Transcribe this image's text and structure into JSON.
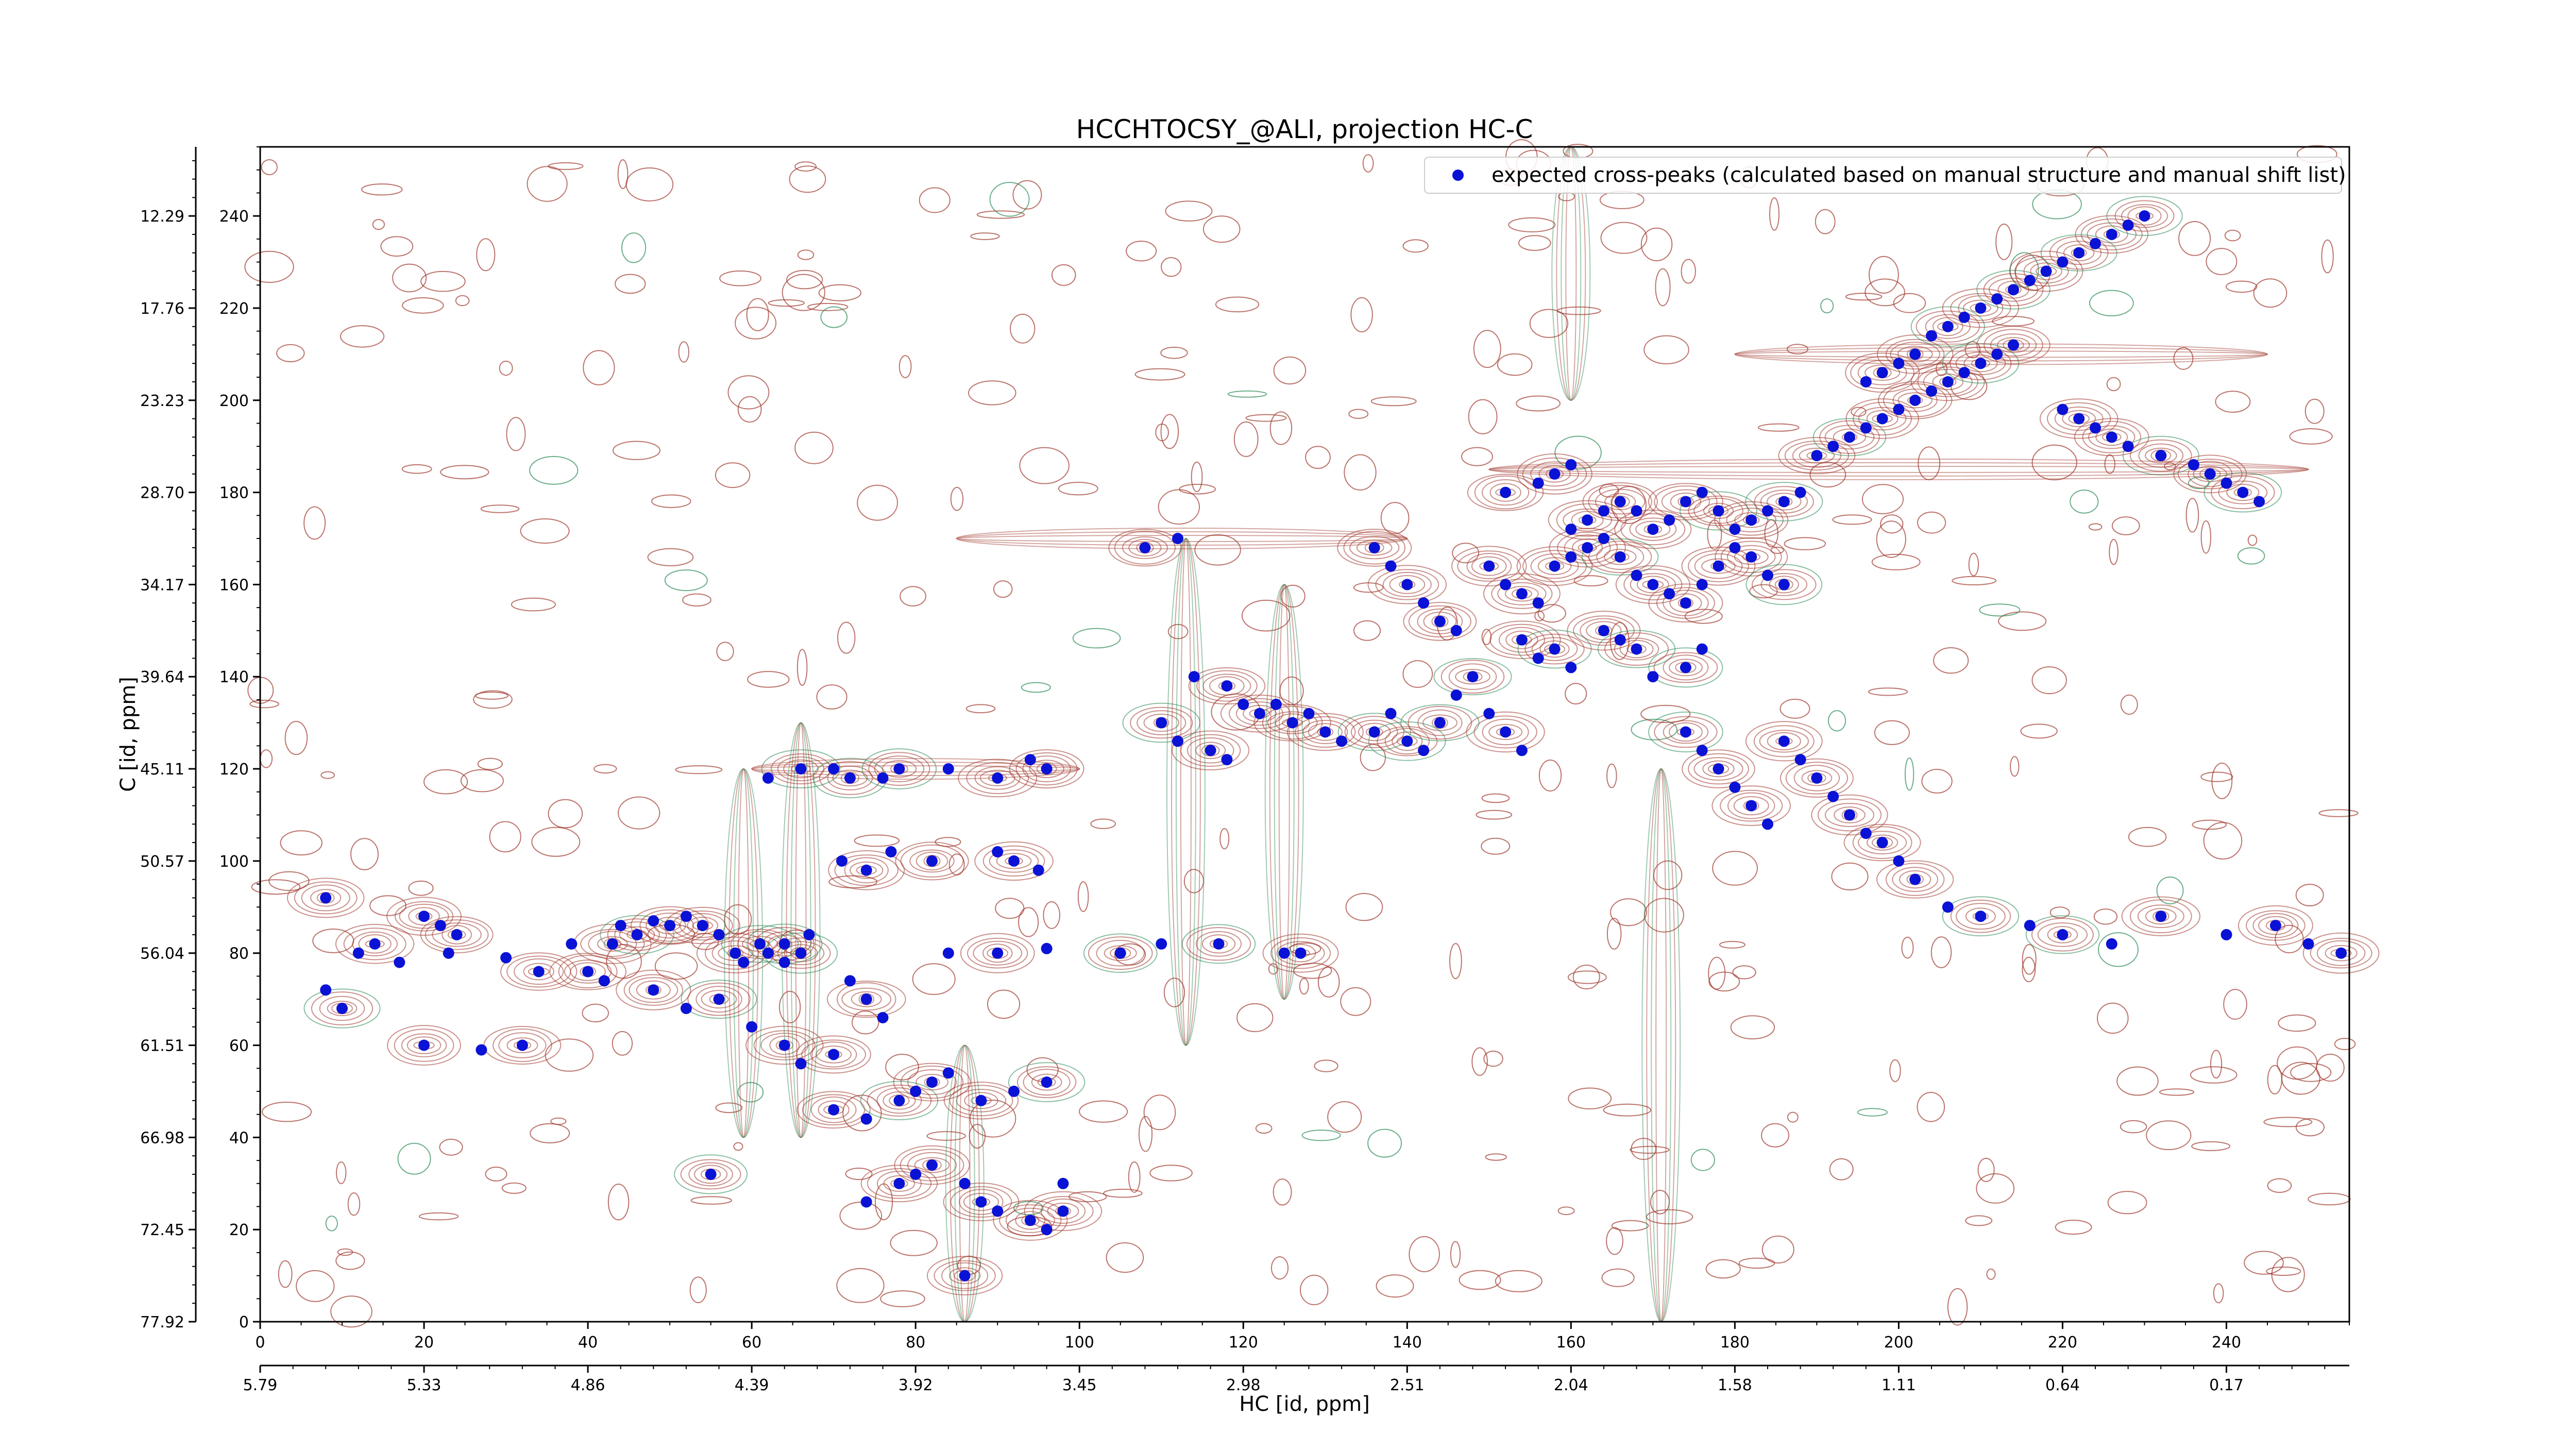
{
  "chart_data": {
    "type": "scatter",
    "title": "HCCHTOCSY_@ALI, projection HC-C",
    "xlabel": "HC [id, ppm]",
    "ylabel": "C [id, ppm]",
    "xlim": [
      0,
      255
    ],
    "ylim": [
      0,
      255
    ],
    "x_ticks": [
      0,
      20,
      40,
      60,
      80,
      100,
      120,
      140,
      160,
      180,
      200,
      220,
      240
    ],
    "y_ticks": [
      0,
      20,
      40,
      60,
      80,
      100,
      120,
      140,
      160,
      180,
      200,
      220,
      240
    ],
    "hc_ppm_ticks": [
      "5.79",
      "5.33",
      "4.86",
      "4.39",
      "3.92",
      "3.45",
      "2.98",
      "2.51",
      "2.04",
      "1.58",
      "1.11",
      "0.64",
      "0.17"
    ],
    "c_ppm_ticks": [
      "77.92",
      "72.45",
      "66.98",
      "61.51",
      "56.04",
      "50.57",
      "45.11",
      "39.64",
      "34.17",
      "28.70",
      "23.23",
      "17.76",
      "12.29"
    ],
    "legend": {
      "placement": "top-right",
      "entries": [
        "expected cross-peaks (calculated based on manual structure and manual shift list)"
      ]
    },
    "grid": false,
    "colors": {
      "points": "#0a12d6",
      "positive_contour": "#a0392e",
      "negative_contour": "#2e8b57"
    },
    "series": [
      {
        "name": "expected cross-peaks (calculated based on manual structure and manual shift list)",
        "points": [
          [
            8,
            92
          ],
          [
            12,
            80
          ],
          [
            14,
            82
          ],
          [
            17,
            78
          ],
          [
            10,
            68
          ],
          [
            8,
            72
          ],
          [
            20,
            88
          ],
          [
            22,
            86
          ],
          [
            24,
            84
          ],
          [
            23,
            80
          ],
          [
            20,
            60
          ],
          [
            27,
            59
          ],
          [
            32,
            60
          ],
          [
            30,
            79
          ],
          [
            34,
            76
          ],
          [
            38,
            82
          ],
          [
            40,
            76
          ],
          [
            42,
            74
          ],
          [
            43,
            82
          ],
          [
            44,
            86
          ],
          [
            46,
            84
          ],
          [
            48,
            87
          ],
          [
            50,
            86
          ],
          [
            52,
            88
          ],
          [
            54,
            86
          ],
          [
            56,
            84
          ],
          [
            58,
            80
          ],
          [
            59,
            78
          ],
          [
            61,
            82
          ],
          [
            62,
            80
          ],
          [
            64,
            82
          ],
          [
            64,
            78
          ],
          [
            66,
            80
          ],
          [
            67,
            84
          ],
          [
            48,
            72
          ],
          [
            52,
            68
          ],
          [
            56,
            70
          ],
          [
            60,
            64
          ],
          [
            64,
            60
          ],
          [
            66,
            56
          ],
          [
            70,
            58
          ],
          [
            72,
            74
          ],
          [
            74,
            70
          ],
          [
            76,
            66
          ],
          [
            70,
            46
          ],
          [
            74,
            44
          ],
          [
            78,
            48
          ],
          [
            80,
            50
          ],
          [
            82,
            52
          ],
          [
            84,
            54
          ],
          [
            88,
            48
          ],
          [
            92,
            50
          ],
          [
            96,
            52
          ],
          [
            62,
            118
          ],
          [
            66,
            120
          ],
          [
            70,
            120
          ],
          [
            72,
            118
          ],
          [
            76,
            118
          ],
          [
            78,
            120
          ],
          [
            84,
            120
          ],
          [
            90,
            118
          ],
          [
            94,
            122
          ],
          [
            96,
            120
          ],
          [
            71,
            100
          ],
          [
            74,
            98
          ],
          [
            77,
            102
          ],
          [
            82,
            100
          ],
          [
            90,
            102
          ],
          [
            92,
            100
          ],
          [
            95,
            98
          ],
          [
            55,
            32
          ],
          [
            74,
            26
          ],
          [
            78,
            30
          ],
          [
            80,
            32
          ],
          [
            82,
            34
          ],
          [
            86,
            30
          ],
          [
            88,
            26
          ],
          [
            90,
            24
          ],
          [
            94,
            22
          ],
          [
            96,
            20
          ],
          [
            98,
            24
          ],
          [
            98,
            30
          ],
          [
            86,
            10
          ],
          [
            84,
            80
          ],
          [
            90,
            80
          ],
          [
            96,
            81
          ],
          [
            105,
            80
          ],
          [
            110,
            82
          ],
          [
            117,
            82
          ],
          [
            125,
            80
          ],
          [
            127,
            80
          ],
          [
            114,
            140
          ],
          [
            118,
            138
          ],
          [
            120,
            134
          ],
          [
            122,
            132
          ],
          [
            124,
            134
          ],
          [
            110,
            130
          ],
          [
            112,
            126
          ],
          [
            116,
            124
          ],
          [
            118,
            122
          ],
          [
            126,
            130
          ],
          [
            128,
            132
          ],
          [
            130,
            128
          ],
          [
            132,
            126
          ],
          [
            136,
            128
          ],
          [
            138,
            132
          ],
          [
            140,
            126
          ],
          [
            142,
            124
          ],
          [
            144,
            130
          ],
          [
            146,
            136
          ],
          [
            148,
            140
          ],
          [
            150,
            132
          ],
          [
            152,
            128
          ],
          [
            154,
            124
          ],
          [
            108,
            168
          ],
          [
            112,
            170
          ],
          [
            136,
            168
          ],
          [
            138,
            164
          ],
          [
            140,
            160
          ],
          [
            142,
            156
          ],
          [
            144,
            152
          ],
          [
            146,
            150
          ],
          [
            150,
            164
          ],
          [
            152,
            160
          ],
          [
            154,
            158
          ],
          [
            156,
            156
          ],
          [
            158,
            164
          ],
          [
            160,
            166
          ],
          [
            162,
            168
          ],
          [
            164,
            170
          ],
          [
            166,
            166
          ],
          [
            168,
            162
          ],
          [
            170,
            160
          ],
          [
            172,
            158
          ],
          [
            174,
            156
          ],
          [
            176,
            160
          ],
          [
            178,
            164
          ],
          [
            180,
            168
          ],
          [
            182,
            166
          ],
          [
            184,
            162
          ],
          [
            186,
            160
          ],
          [
            160,
            172
          ],
          [
            162,
            174
          ],
          [
            164,
            176
          ],
          [
            166,
            178
          ],
          [
            168,
            176
          ],
          [
            170,
            172
          ],
          [
            172,
            174
          ],
          [
            174,
            178
          ],
          [
            176,
            180
          ],
          [
            178,
            176
          ],
          [
            180,
            172
          ],
          [
            182,
            174
          ],
          [
            184,
            176
          ],
          [
            186,
            178
          ],
          [
            188,
            180
          ],
          [
            152,
            180
          ],
          [
            156,
            182
          ],
          [
            158,
            184
          ],
          [
            160,
            186
          ],
          [
            154,
            148
          ],
          [
            156,
            144
          ],
          [
            158,
            146
          ],
          [
            160,
            142
          ],
          [
            164,
            150
          ],
          [
            166,
            148
          ],
          [
            168,
            146
          ],
          [
            170,
            140
          ],
          [
            174,
            142
          ],
          [
            176,
            146
          ],
          [
            190,
            188
          ],
          [
            192,
            190
          ],
          [
            194,
            192
          ],
          [
            196,
            194
          ],
          [
            198,
            196
          ],
          [
            200,
            198
          ],
          [
            202,
            200
          ],
          [
            204,
            202
          ],
          [
            206,
            204
          ],
          [
            208,
            206
          ],
          [
            210,
            208
          ],
          [
            212,
            210
          ],
          [
            214,
            212
          ],
          [
            196,
            204
          ],
          [
            198,
            206
          ],
          [
            200,
            208
          ],
          [
            202,
            210
          ],
          [
            204,
            214
          ],
          [
            206,
            216
          ],
          [
            208,
            218
          ],
          [
            210,
            220
          ],
          [
            212,
            222
          ],
          [
            214,
            224
          ],
          [
            216,
            226
          ],
          [
            218,
            228
          ],
          [
            220,
            230
          ],
          [
            222,
            232
          ],
          [
            224,
            234
          ],
          [
            226,
            236
          ],
          [
            228,
            238
          ],
          [
            230,
            240
          ],
          [
            220,
            198
          ],
          [
            222,
            196
          ],
          [
            224,
            194
          ],
          [
            226,
            192
          ],
          [
            228,
            190
          ],
          [
            232,
            188
          ],
          [
            236,
            186
          ],
          [
            238,
            184
          ],
          [
            240,
            182
          ],
          [
            242,
            180
          ],
          [
            244,
            178
          ],
          [
            174,
            128
          ],
          [
            176,
            124
          ],
          [
            178,
            120
          ],
          [
            180,
            116
          ],
          [
            182,
            112
          ],
          [
            184,
            108
          ],
          [
            186,
            126
          ],
          [
            188,
            122
          ],
          [
            190,
            118
          ],
          [
            192,
            114
          ],
          [
            194,
            110
          ],
          [
            196,
            106
          ],
          [
            198,
            104
          ],
          [
            200,
            100
          ],
          [
            202,
            96
          ],
          [
            206,
            90
          ],
          [
            210,
            88
          ],
          [
            216,
            86
          ],
          [
            220,
            84
          ],
          [
            226,
            82
          ],
          [
            232,
            88
          ],
          [
            240,
            84
          ],
          [
            246,
            86
          ],
          [
            250,
            82
          ],
          [
            254,
            80
          ]
        ]
      }
    ]
  }
}
